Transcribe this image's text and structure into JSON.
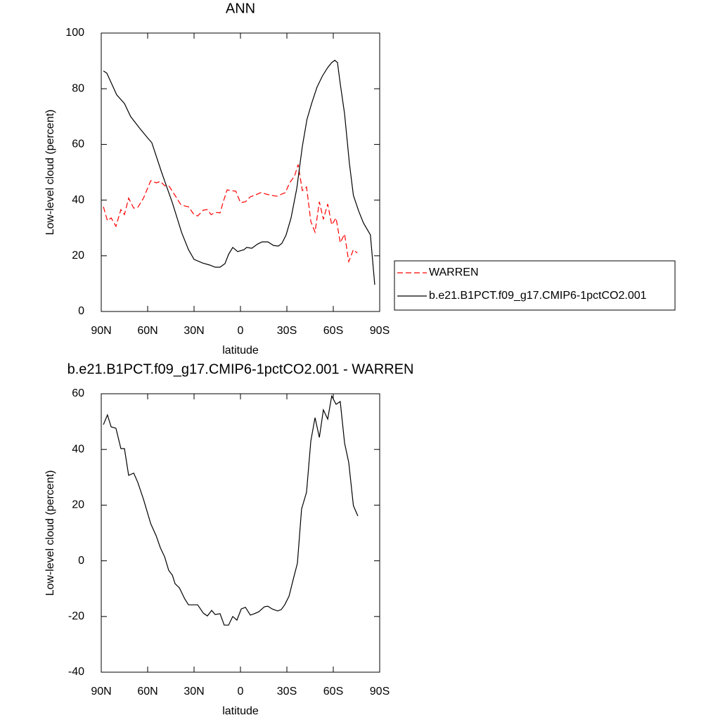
{
  "chart_data": [
    {
      "type": "line",
      "title": "ANN",
      "x_label": "latitude",
      "y_label": "Low-level cloud (percent)",
      "xlim": [
        90,
        -90
      ],
      "ylim": [
        0,
        100
      ],
      "xticks": [
        {
          "value": 90,
          "label": "90N"
        },
        {
          "value": 60,
          "label": "60N"
        },
        {
          "value": 30,
          "label": "30N"
        },
        0,
        {
          "value": -30,
          "label": "30S"
        },
        {
          "value": -60,
          "label": "60S"
        },
        {
          "value": -90,
          "label": "90S"
        }
      ],
      "yticks": [
        0,
        20,
        40,
        60,
        80,
        100
      ],
      "legend": "outside-right",
      "series": [
        {
          "name": "WARREN",
          "color": "#ff0000",
          "dash": true,
          "x": [
            88.6,
            86,
            83.6,
            80.5,
            77.3,
            75,
            72.3,
            69,
            66.4,
            62.7,
            58,
            54.5,
            51.8,
            49,
            46.4,
            42.3,
            38.6,
            36,
            33.6,
            30,
            27.7,
            24,
            21.4,
            19,
            16,
            13.2,
            11,
            8.6,
            6,
            3,
            0,
            -3.2,
            -6.4,
            -9,
            -13.2,
            -16.4,
            -20,
            -23.6,
            -26.8,
            -29,
            -31.8,
            -35,
            -37.3,
            -40,
            -42.7,
            -45.5,
            -48.2,
            -51,
            -53.6,
            -56.4,
            -59,
            -61.8,
            -64.5,
            -67.3,
            -70,
            -73,
            -75.5
          ],
          "values": [
            37.6,
            32.6,
            33.6,
            30.6,
            36.6,
            34.8,
            40.7,
            37.1,
            37.4,
            40.7,
            47,
            46.2,
            46.7,
            45.2,
            45.2,
            41.7,
            38.4,
            37.9,
            37.6,
            34.8,
            34.3,
            36.4,
            36.6,
            34.8,
            35.6,
            35.4,
            39.6,
            43.7,
            43.4,
            43.2,
            39.1,
            39.4,
            41.2,
            41.7,
            42.7,
            42.2,
            41.7,
            41.4,
            42.2,
            42.7,
            46.2,
            48.7,
            52.8,
            43.4,
            44.7,
            32.3,
            28.5,
            39.4,
            33.1,
            38.6,
            31.1,
            33.6,
            24.7,
            27.8,
            17.9,
            22.2,
            21
          ]
        },
        {
          "name": "b.e21.B1PCT.f09_g17.CMIP6-1pctCO2.001",
          "color": "#000000",
          "dash": false,
          "x": [
            88.6,
            86.4,
            80,
            75,
            71,
            65,
            59.5,
            57.3,
            51,
            44,
            38,
            33.6,
            30,
            24.5,
            20,
            16.4,
            13.2,
            10,
            7.7,
            5,
            1.8,
            -2.3,
            -4,
            -7.3,
            -11,
            -14,
            -17.7,
            -21.4,
            -24.5,
            -26.8,
            -29.5,
            -32.7,
            -36.4,
            -40,
            -43,
            -46,
            -49.5,
            -53,
            -56.4,
            -59,
            -61,
            -62.7,
            -64.5,
            -67.3,
            -70.4,
            -73,
            -76.4,
            -79.5,
            -84,
            -86.8
          ],
          "values": [
            86.4,
            85.6,
            77.8,
            74.7,
            70,
            65.7,
            62,
            60.6,
            50,
            39,
            28.3,
            22.2,
            18.7,
            17.4,
            16.7,
            15.9,
            15.9,
            17.2,
            20.5,
            23,
            21.5,
            22.2,
            23,
            22.7,
            24.2,
            25,
            25,
            23.7,
            23.5,
            24.5,
            27.5,
            33.6,
            44.2,
            59.3,
            69,
            74.7,
            80.6,
            84.6,
            87.6,
            89.4,
            90.2,
            89.4,
            81.8,
            71,
            53.3,
            41.7,
            36.1,
            31.8,
            27.5,
            9.6
          ]
        }
      ]
    },
    {
      "type": "line",
      "title": "b.e21.B1PCT.f09_g17.CMIP6-1pctCO2.001 - WARREN",
      "x_label": "latitude",
      "y_label": "Low-level cloud (percent)",
      "xlim": [
        90,
        -90
      ],
      "ylim": [
        -40,
        60
      ],
      "xticks": [
        {
          "value": 90,
          "label": "90N"
        },
        {
          "value": 60,
          "label": "60N"
        },
        {
          "value": 30,
          "label": "30N"
        },
        0,
        {
          "value": -30,
          "label": "30S"
        },
        {
          "value": -60,
          "label": "60S"
        },
        {
          "value": -90,
          "label": "90S"
        }
      ],
      "yticks": [
        -40,
        -20,
        0,
        20,
        40,
        60
      ],
      "series": [
        {
          "color": "#000000",
          "dash": false,
          "x": [
            88.6,
            86,
            83.6,
            80.5,
            77.3,
            75,
            72.3,
            69,
            66.4,
            62.7,
            58,
            54.5,
            51.8,
            49,
            46.4,
            44,
            42.3,
            39.5,
            36,
            33.6,
            27.7,
            24,
            21.4,
            18.6,
            16.4,
            13.2,
            10.5,
            7.7,
            5,
            2.3,
            -0.5,
            -3.2,
            -6.4,
            -9,
            -11.8,
            -15.5,
            -17.7,
            -20.5,
            -24,
            -26.4,
            -28.6,
            -31.4,
            -34,
            -36.8,
            -39.5,
            -42.7,
            -45.5,
            -48.2,
            -51,
            -53.6,
            -56.4,
            -59,
            -61.8,
            -64.5,
            -67.3,
            -70,
            -73,
            -75.9
          ],
          "values": [
            48.9,
            52.4,
            48.1,
            47.6,
            40.3,
            40.3,
            30.7,
            31.5,
            28.2,
            22.1,
            13.3,
            9,
            4.7,
            1.4,
            -3.4,
            -5.2,
            -8.2,
            -9.7,
            -13.7,
            -15.8,
            -15.8,
            -18.8,
            -19.8,
            -17.8,
            -19.3,
            -19,
            -23.1,
            -23.1,
            -20,
            -21.3,
            -17.3,
            -16.7,
            -19.5,
            -19,
            -18.3,
            -16.5,
            -16.3,
            -17.3,
            -18,
            -17.5,
            -15.8,
            -12.7,
            -6.9,
            -0.9,
            18.6,
            24.6,
            43.1,
            51.4,
            44.3,
            54.2,
            50.9,
            59.2,
            56.2,
            57.2,
            42.3,
            35.3,
            19.8,
            16.1
          ]
        }
      ]
    }
  ]
}
